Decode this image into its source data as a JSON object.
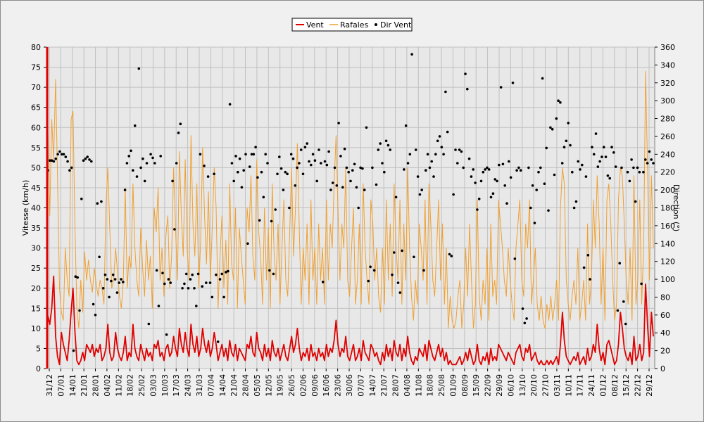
{
  "chart_data": {
    "type": "line",
    "legend": {
      "placement": "top-center",
      "entries": [
        "Vent",
        "Rafales",
        "Dir Vent"
      ]
    },
    "colors": {
      "vent": "#e00000",
      "rafales": "#f0a030",
      "dir": "#000000",
      "plot_bg": "#e8e8e8",
      "grid": "#c0c0c0"
    },
    "grid": true,
    "y_left": {
      "label": "Vitesse (km/h)",
      "range": [
        0,
        80
      ],
      "ticks": [
        0,
        5,
        10,
        15,
        20,
        25,
        30,
        35,
        40,
        45,
        50,
        55,
        60,
        65,
        70,
        75,
        80
      ]
    },
    "y_right": {
      "label": "Direction (°)",
      "range": [
        0,
        360
      ],
      "ticks": [
        0,
        20,
        40,
        60,
        80,
        100,
        120,
        140,
        160,
        180,
        200,
        220,
        240,
        260,
        280,
        300,
        320,
        340,
        360
      ]
    },
    "x_tick_labels": [
      "31/12",
      "07/01",
      "14/01",
      "21/01",
      "28/01",
      "04/02",
      "11/02",
      "18/02",
      "25/02",
      "03/03",
      "10/03",
      "17/03",
      "24/03",
      "31/03",
      "07/04",
      "14/04",
      "21/04",
      "28/04",
      "05/05",
      "12/05",
      "19/05",
      "26/05",
      "02/06",
      "09/06",
      "16/06",
      "23/06",
      "30/06",
      "07/07",
      "14/07",
      "21/07",
      "28/07",
      "04/08",
      "11/08",
      "18/08",
      "25/08",
      "01/09",
      "08/09",
      "15/09",
      "22/09",
      "29/09",
      "06/10",
      "13/10",
      "20/10",
      "27/10",
      "03/11",
      "10/11",
      "17/11",
      "24/11",
      "01/12",
      "08/12",
      "15/12",
      "22/12",
      "29/12"
    ],
    "series": [
      {
        "name": "Vent",
        "axis": "left",
        "values": [
          13,
          11,
          15,
          23,
          8,
          3,
          1,
          9,
          6,
          4,
          2,
          7,
          14,
          20,
          9,
          2,
          1,
          2,
          4,
          2,
          6,
          5,
          4,
          6,
          3,
          5,
          4,
          6,
          2,
          3,
          5,
          11,
          4,
          2,
          3,
          9,
          5,
          3,
          2,
          4,
          8,
          2,
          4,
          3,
          11,
          5,
          3,
          2,
          6,
          4,
          2,
          5,
          3,
          4,
          2,
          6,
          5,
          7,
          3,
          4,
          2,
          5,
          6,
          3,
          4,
          8,
          5,
          3,
          10,
          6,
          4,
          9,
          5,
          3,
          11,
          6,
          4,
          8,
          3,
          5,
          10,
          6,
          4,
          7,
          3,
          5,
          9,
          6,
          2,
          4,
          6,
          3,
          5,
          2,
          7,
          4,
          3,
          6,
          2,
          5,
          4,
          3,
          2,
          6,
          5,
          8,
          4,
          3,
          9,
          5,
          4,
          2,
          6,
          3,
          5,
          2,
          7,
          4,
          3,
          5,
          2,
          4,
          6,
          3,
          2,
          5,
          8,
          4,
          6,
          10,
          5,
          2,
          4,
          3,
          5,
          2,
          6,
          3,
          4,
          2,
          5,
          3,
          4,
          2,
          6,
          3,
          5,
          4,
          7,
          12,
          6,
          3,
          5,
          4,
          8,
          3,
          2,
          4,
          6,
          2,
          3,
          5,
          2,
          7,
          4,
          3,
          2,
          6,
          5,
          3,
          4,
          2,
          1,
          4,
          2,
          6,
          3,
          5,
          2,
          7,
          4,
          3,
          6,
          2,
          5,
          3,
          8,
          4,
          2,
          1,
          3,
          2,
          5,
          4,
          3,
          6,
          2,
          7,
          5,
          3,
          2,
          4,
          6,
          3,
          5,
          2,
          4,
          1,
          2,
          1,
          1,
          1,
          2,
          3,
          1,
          2,
          4,
          2,
          5,
          3,
          1,
          2,
          6,
          2,
          1,
          3,
          2,
          4,
          1,
          5,
          2,
          3,
          2,
          6,
          5,
          4,
          3,
          2,
          4,
          3,
          2,
          1,
          4,
          5,
          6,
          3,
          2,
          5,
          4,
          6,
          2,
          3,
          4,
          2,
          1,
          2,
          1,
          1,
          2,
          1,
          2,
          1,
          2,
          3,
          1,
          6,
          14,
          7,
          3,
          2,
          1,
          2,
          3,
          2,
          4,
          1,
          2,
          3,
          1,
          5,
          2,
          3,
          6,
          4,
          11,
          5,
          2,
          4,
          1,
          6,
          7,
          5,
          3,
          1,
          2,
          6,
          14,
          10,
          5,
          3,
          2,
          4,
          1,
          8,
          2,
          3,
          6,
          2,
          4,
          21,
          11,
          3,
          14,
          8
        ]
      },
      {
        "name": "Rafales",
        "axis": "left",
        "values": [
          60,
          38,
          62,
          52,
          72,
          48,
          20,
          14,
          12,
          30,
          22,
          18,
          62,
          64,
          35,
          15,
          10,
          22,
          14,
          29,
          22,
          27,
          22,
          19,
          25,
          21,
          18,
          22,
          20,
          16,
          40,
          50,
          35,
          20,
          22,
          30,
          24,
          18,
          15,
          22,
          45,
          20,
          28,
          25,
          46,
          30,
          22,
          18,
          35,
          25,
          18,
          32,
          22,
          28,
          15,
          40,
          34,
          45,
          22,
          30,
          18,
          33,
          38,
          20,
          28,
          50,
          35,
          22,
          54,
          38,
          28,
          52,
          30,
          22,
          58,
          36,
          28,
          46,
          20,
          32,
          55,
          38,
          26,
          44,
          22,
          35,
          50,
          40,
          15,
          28,
          38,
          20,
          32,
          16,
          46,
          26,
          22,
          40,
          15,
          35,
          28,
          22,
          16,
          40,
          34,
          48,
          28,
          22,
          52,
          34,
          28,
          16,
          40,
          22,
          35,
          15,
          46,
          28,
          22,
          36,
          16,
          30,
          42,
          22,
          18,
          34,
          50,
          28,
          40,
          56,
          34,
          16,
          30,
          22,
          36,
          16,
          42,
          22,
          30,
          16,
          36,
          22,
          30,
          16,
          42,
          22,
          36,
          30,
          46,
          58,
          40,
          22,
          36,
          30,
          50,
          22,
          18,
          30,
          40,
          16,
          22,
          36,
          16,
          46,
          30,
          22,
          16,
          42,
          36,
          22,
          30,
          18,
          14,
          30,
          16,
          42,
          22,
          36,
          18,
          46,
          30,
          22,
          42,
          16,
          36,
          22,
          50,
          30,
          18,
          12,
          22,
          16,
          36,
          30,
          22,
          42,
          16,
          46,
          36,
          22,
          18,
          30,
          42,
          22,
          36,
          16,
          30,
          10,
          18,
          12,
          10,
          12,
          18,
          22,
          10,
          16,
          30,
          18,
          36,
          22,
          10,
          16,
          42,
          18,
          12,
          22,
          16,
          30,
          12,
          36,
          18,
          22,
          16,
          42,
          36,
          30,
          22,
          18,
          30,
          22,
          16,
          12,
          30,
          36,
          42,
          22,
          18,
          36,
          30,
          42,
          16,
          22,
          30,
          16,
          12,
          18,
          12,
          10,
          16,
          12,
          18,
          12,
          16,
          22,
          12,
          40,
          50,
          46,
          22,
          16,
          12,
          18,
          22,
          16,
          30,
          12,
          16,
          22,
          12,
          36,
          16,
          22,
          42,
          30,
          48,
          36,
          16,
          30,
          12,
          42,
          46,
          36,
          22,
          12,
          16,
          42,
          50,
          48,
          36,
          22,
          16,
          30,
          12,
          48,
          16,
          22,
          42,
          16,
          30,
          74,
          50,
          22,
          48,
          30
        ]
      },
      {
        "name": "Dir Vent",
        "axis": "right",
        "style": "markers",
        "values": [
          222,
          233,
          233,
          232,
          235,
          240,
          243,
          240,
          240,
          237,
          232,
          222,
          225,
          20,
          103,
          102,
          65,
          190,
          233,
          235,
          237,
          234,
          232,
          72,
          60,
          185,
          125,
          187,
          90,
          105,
          100,
          80,
          98,
          105,
          100,
          85,
          96,
          100,
          97,
          200,
          230,
          238,
          244,
          222,
          272,
          215,
          336,
          225,
          235,
          210,
          230,
          50,
          240,
          236,
          230,
          110,
          70,
          238,
          107,
          95,
          38,
          100,
          96,
          210,
          156,
          230,
          264,
          274,
          90,
          95,
          106,
          90,
          100,
          105,
          90,
          70,
          106,
          240,
          92,
          227,
          96,
          215,
          96,
          80,
          218,
          105,
          30,
          100,
          106,
          80,
          108,
          109,
          296,
          230,
          210,
          238,
          220,
          235,
          203,
          222,
          240,
          140,
          226,
          240,
          240,
          248,
          214,
          166,
          220,
          192,
          240,
          230,
          110,
          165,
          106,
          178,
          218,
          237,
          224,
          200,
          220,
          218,
          180,
          240,
          235,
          205,
          225,
          230,
          245,
          218,
          248,
          252,
          232,
          228,
          240,
          233,
          210,
          245,
          230,
          97,
          232,
          228,
          243,
          200,
          208,
          225,
          205,
          275,
          238,
          203,
          246,
          225,
          220,
          210,
          222,
          229,
          203,
          180,
          225,
          224,
          200,
          270,
          98,
          114,
          225,
          110,
          206,
          245,
          252,
          230,
          220,
          255,
          250,
          245,
          105,
          130,
          192,
          96,
          85,
          132,
          223,
          272,
          230,
          240,
          352,
          125,
          245,
          215,
          195,
          200,
          110,
          222,
          240,
          225,
          232,
          215,
          240,
          255,
          260,
          248,
          240,
          310,
          265,
          128,
          126,
          195,
          245,
          230,
          245,
          243,
          225,
          330,
          313,
          235,
          215,
          223,
          208,
          178,
          190,
          210,
          220,
          223,
          225,
          223,
          192,
          196,
          212,
          210,
          228,
          315,
          229,
          205,
          185,
          232,
          214,
          320,
          123,
          222,
          225,
          222,
          67,
          51,
          56,
          225,
          180,
          205,
          163,
          200,
          220,
          225,
          325,
          207,
          247,
          177,
          270,
          268,
          217,
          280,
          300,
          298,
          230,
          248,
          255,
          275,
          250,
          220,
          180,
          187,
          232,
          223,
          228,
          113,
          215,
          127,
          100,
          248,
          240,
          263,
          226,
          232,
          237,
          248,
          237,
          216,
          213,
          248,
          242,
          226,
          65,
          118,
          225,
          75,
          50,
          220,
          210,
          234,
          225,
          187,
          225,
          220,
          95,
          220,
          234,
          230,
          243,
          234,
          230
        ]
      }
    ]
  }
}
